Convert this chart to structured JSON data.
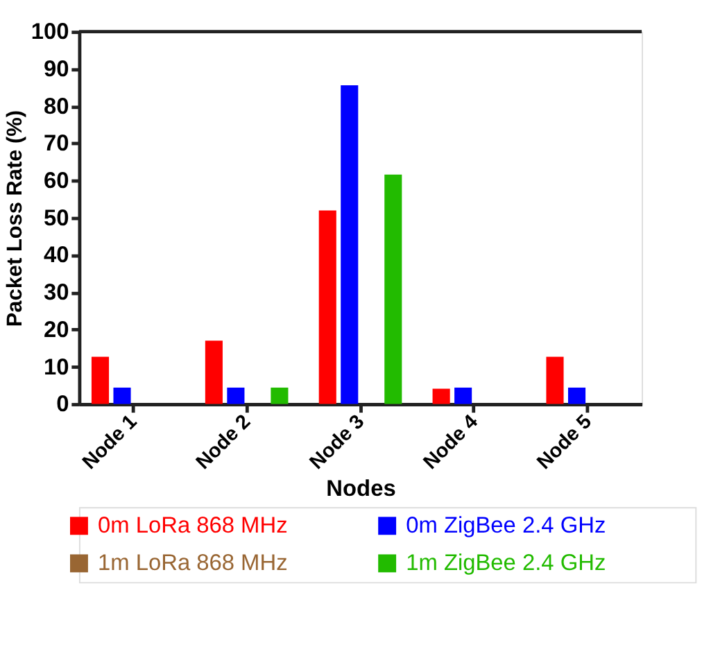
{
  "chart_data": {
    "type": "bar",
    "xlabel": "Nodes",
    "ylabel": "Packet Loss Rate (%)",
    "categories": [
      "Node 1",
      "Node 2",
      "Node 3",
      "Node 4",
      "Node 5"
    ],
    "series": [
      {
        "name": "0m LoRa 868 MHz",
        "color": "#ff0000",
        "values": [
          12.7,
          17.0,
          52,
          4.1,
          12.7
        ]
      },
      {
        "name": "0m ZigBee 2.4 GHz",
        "color": "#0000ff",
        "values": [
          4.4,
          4.4,
          85.6,
          4.4,
          4.4
        ]
      },
      {
        "name": "1m LoRa 868 MHz",
        "color": "#996633",
        "values": [
          0,
          0,
          0,
          0,
          0
        ]
      },
      {
        "name": "1m ZigBee 2.4 GHz",
        "color": "#22bb00",
        "values": [
          0,
          4.4,
          61.6,
          0,
          0
        ]
      }
    ],
    "ylim": [
      0,
      100
    ],
    "yticks": [
      0,
      10,
      20,
      30,
      40,
      50,
      60,
      70,
      80,
      90,
      100
    ],
    "grid": false,
    "legend": "bottom"
  }
}
